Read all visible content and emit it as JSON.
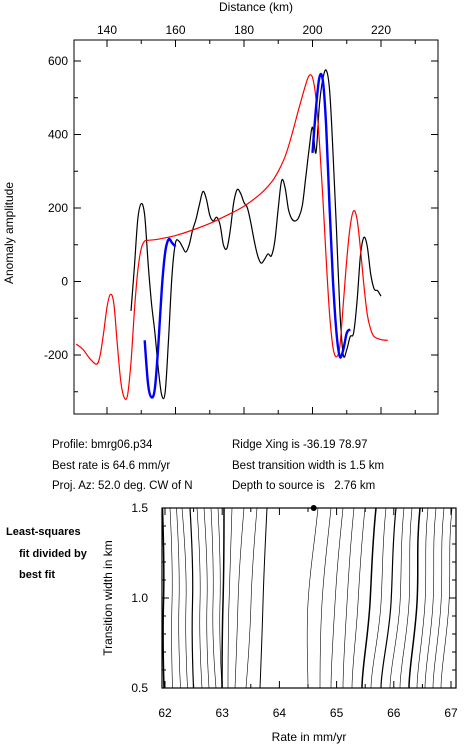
{
  "chart_data": [
    {
      "type": "line",
      "xlabel_top": "Distance (km)",
      "ylabel": "Anomaly amplitude",
      "xlim": [
        130,
        232
      ],
      "ylim": [
        -360,
        620
      ],
      "x_ticks": [
        140,
        160,
        180,
        200,
        220
      ],
      "y_ticks": [
        -200,
        0,
        200,
        400,
        600
      ],
      "series": [
        {
          "color": "#000000",
          "points": [
            [
              147,
              -80
            ],
            [
              148,
              40
            ],
            [
              149,
              170
            ],
            [
              150,
              212
            ],
            [
              151,
              180
            ],
            [
              152,
              50
            ],
            [
              153,
              -60
            ],
            [
              154,
              -140
            ],
            [
              155,
              -240
            ],
            [
              156,
              -310
            ],
            [
              157,
              -300
            ],
            [
              158,
              -150
            ],
            [
              159,
              20
            ],
            [
              160,
              105
            ],
            [
              161,
              110
            ],
            [
              162,
              95
            ],
            [
              163,
              80
            ],
            [
              164,
              100
            ],
            [
              165,
              140
            ],
            [
              166,
              170
            ],
            [
              167,
              210
            ],
            [
              168,
              245
            ],
            [
              169,
              225
            ],
            [
              170,
              180
            ],
            [
              171,
              165
            ],
            [
              172,
              175
            ],
            [
              173,
              155
            ],
            [
              174,
              100
            ],
            [
              175,
              90
            ],
            [
              176,
              140
            ],
            [
              177,
              215
            ],
            [
              178,
              250
            ],
            [
              179,
              240
            ],
            [
              180,
              215
            ],
            [
              181,
              200
            ],
            [
              182,
              160
            ],
            [
              183,
              110
            ],
            [
              184,
              70
            ],
            [
              185,
              50
            ],
            [
              186,
              60
            ],
            [
              187,
              75
            ],
            [
              188,
              70
            ],
            [
              189,
              110
            ],
            [
              190,
              200
            ],
            [
              191,
              275
            ],
            [
              192,
              255
            ],
            [
              193,
              195
            ],
            [
              194,
              170
            ],
            [
              195,
              165
            ],
            [
              196,
              175
            ],
            [
              197,
              205
            ],
            [
              198,
              280
            ],
            [
              199,
              360
            ],
            [
              200,
              420
            ],
            [
              201,
              350
            ],
            [
              202,
              480
            ],
            [
              203,
              550
            ],
            [
              204,
              575
            ],
            [
              205,
              520
            ],
            [
              206,
              350
            ],
            [
              207,
              140
            ],
            [
              208,
              -80
            ],
            [
              209,
              -200
            ],
            [
              210,
              -185
            ],
            [
              211,
              -150
            ],
            [
              212,
              -140
            ],
            [
              213,
              -55
            ],
            [
              214,
              70
            ],
            [
              215,
              120
            ],
            [
              216,
              95
            ],
            [
              217,
              20
            ],
            [
              218,
              -20
            ],
            [
              219,
              -25
            ],
            [
              220,
              -40
            ]
          ]
        },
        {
          "color": "#ff0000",
          "points": [
            [
              131,
              -170
            ],
            [
              133,
              -185
            ],
            [
              135,
              -210
            ],
            [
              137,
              -225
            ],
            [
              138,
              -200
            ],
            [
              139,
              -140
            ],
            [
              140,
              -70
            ],
            [
              141,
              -35
            ],
            [
              142,
              -60
            ],
            [
              143,
              -170
            ],
            [
              144,
              -270
            ],
            [
              145,
              -315
            ],
            [
              146,
              -310
            ],
            [
              147,
              -220
            ],
            [
              148,
              -80
            ],
            [
              149,
              30
            ],
            [
              150,
              90
            ],
            [
              151,
              110
            ],
            [
              152,
              112
            ],
            [
              155,
              115
            ],
            [
              160,
              125
            ],
            [
              165,
              140
            ],
            [
              170,
              158
            ],
            [
              175,
              180
            ],
            [
              180,
              205
            ],
            [
              185,
              240
            ],
            [
              188,
              270
            ],
            [
              190,
              300
            ],
            [
              192,
              340
            ],
            [
              194,
              400
            ],
            [
              196,
              470
            ],
            [
              198,
              535
            ],
            [
              199,
              560
            ],
            [
              200,
              555
            ],
            [
              201,
              500
            ],
            [
              202,
              380
            ],
            [
              203,
              230
            ],
            [
              204,
              60
            ],
            [
              205,
              -90
            ],
            [
              206,
              -180
            ],
            [
              207,
              -205
            ],
            [
              208,
              -175
            ],
            [
              209,
              -60
            ],
            [
              210,
              60
            ],
            [
              211,
              150
            ],
            [
              212,
              192
            ],
            [
              213,
              170
            ],
            [
              214,
              90
            ],
            [
              215,
              -10
            ],
            [
              216,
              -90
            ],
            [
              217,
              -130
            ],
            [
              218,
              -150
            ],
            [
              220,
              -158
            ],
            [
              222,
              -160
            ]
          ]
        },
        {
          "color": "#0000ff",
          "points": [
            [
              151,
              -160
            ],
            [
              152,
              -280
            ],
            [
              153,
              -315
            ],
            [
              154,
              -290
            ],
            [
              155,
              -170
            ],
            [
              156,
              -20
            ],
            [
              157,
              80
            ],
            [
              158,
              115
            ],
            [
              159,
              105
            ],
            [
              160,
              95
            ]
          ]
        },
        {
          "color": "#0000ff",
          "points": [
            [
              200,
              350
            ],
            [
              201,
              470
            ],
            [
              202,
              555
            ],
            [
              203,
              548
            ],
            [
              204,
              420
            ],
            [
              205,
              200
            ],
            [
              206,
              0
            ],
            [
              207,
              -140
            ],
            [
              208,
              -205
            ],
            [
              209,
              -185
            ],
            [
              210,
              -140
            ],
            [
              211,
              -130
            ]
          ]
        }
      ]
    },
    {
      "type": "contour",
      "xlabel": "Rate in mm/yr",
      "ylabel": "Transition width in km",
      "xlim": [
        62,
        67
      ],
      "ylim": [
        0.5,
        1.5
      ],
      "x_ticks": [
        62,
        63,
        64,
        65,
        66,
        67
      ],
      "y_ticks": [
        0.5,
        1.0,
        1.5
      ],
      "best_fit": {
        "x": 64.6,
        "y": 1.5
      }
    }
  ],
  "info": {
    "profile": "Profile: bmrg06.p34",
    "best_rate": "Best rate is 64.6 mm/yr",
    "proj_az": "Proj. Az: 52.0 deg. CW of N",
    "ridge_xing": "Ridge Xing is -36.19 78.97",
    "best_width": "Best transition width is 1.5 km",
    "depth": "Depth to source is   2.76 km"
  },
  "side_label": [
    "Least-squares",
    "fit divided by",
    "best fit"
  ]
}
